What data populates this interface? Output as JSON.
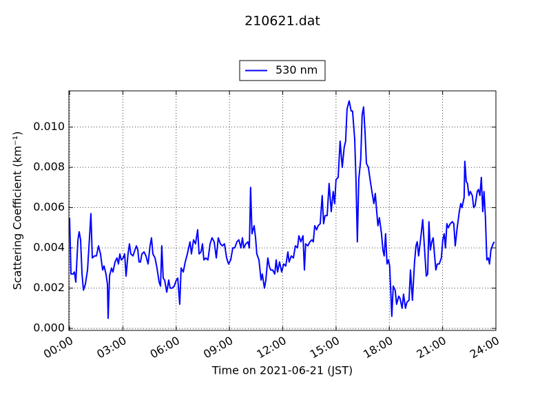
{
  "chart_data": {
    "type": "line",
    "title": "210621.dat",
    "x_label": "Time on 2021-06-21 (JST)",
    "y_label": "Scattering Coefficient (km⁻¹)",
    "xlim": [
      -0.04,
      24
    ],
    "xticks": [
      {
        "value": 0,
        "label": "00:00"
      },
      {
        "value": 3,
        "label": "03:00"
      },
      {
        "value": 6,
        "label": "06:00"
      },
      {
        "value": 9,
        "label": "09:00"
      },
      {
        "value": 12,
        "label": "12:00"
      },
      {
        "value": 15,
        "label": "15:00"
      },
      {
        "value": 18,
        "label": "18:00"
      },
      {
        "value": 21,
        "label": "21:00"
      },
      {
        "value": 24,
        "label": "24:00"
      }
    ],
    "ylim": [
      -0.0001,
      0.0118
    ],
    "yticks": [
      {
        "value": 0,
        "label": "0.000"
      },
      0.002,
      0.004,
      0.006,
      0.008,
      {
        "value": 0.01,
        "label": "0.010"
      }
    ],
    "grid": true,
    "legend": "upper center",
    "x": [
      0,
      0.08,
      0.19,
      0.27,
      0.35,
      0.47,
      0.54,
      0.62,
      0.7,
      0.78,
      0.89,
      1.01,
      1.12,
      1.2,
      1.28,
      1.4,
      1.51,
      1.63,
      1.74,
      1.86,
      1.94,
      2.05,
      2.13,
      2.17,
      2.25,
      2.36,
      2.44,
      2.56,
      2.67,
      2.75,
      2.83,
      2.91,
      3.02,
      3.1,
      3.18,
      3.29,
      3.37,
      3.45,
      3.57,
      3.68,
      3.76,
      3.84,
      3.91,
      3.99,
      4.07,
      4.19,
      4.3,
      4.42,
      4.53,
      4.61,
      4.69,
      4.81,
      4.92,
      5.04,
      5.12,
      5.19,
      5.27,
      5.35,
      5.47,
      5.58,
      5.66,
      5.77,
      5.89,
      6.01,
      6.09,
      6.2,
      6.28,
      6.4,
      6.51,
      6.63,
      6.78,
      6.86,
      6.98,
      7.09,
      7.21,
      7.29,
      7.4,
      7.48,
      7.56,
      7.67,
      7.79,
      7.91,
      8.02,
      8.14,
      8.26,
      8.37,
      8.49,
      8.6,
      8.72,
      8.84,
      8.95,
      9.07,
      9.19,
      9.3,
      9.42,
      9.53,
      9.65,
      9.73,
      9.81,
      9.92,
      10.04,
      10.12,
      10.19,
      10.27,
      10.39,
      10.47,
      10.54,
      10.66,
      10.78,
      10.85,
      10.97,
      11.05,
      11.16,
      11.24,
      11.32,
      11.43,
      11.55,
      11.63,
      11.71,
      11.82,
      11.94,
      12.05,
      12.17,
      12.29,
      12.36,
      12.48,
      12.6,
      12.71,
      12.83,
      12.91,
      13.02,
      13.14,
      13.22,
      13.29,
      13.41,
      13.53,
      13.64,
      13.72,
      13.8,
      13.91,
      13.99,
      14.11,
      14.22,
      14.3,
      14.38,
      14.5,
      14.61,
      14.73,
      14.84,
      14.92,
      15.0,
      15.12,
      15.23,
      15.35,
      15.46,
      15.54,
      15.62,
      15.74,
      15.85,
      15.93,
      16.05,
      16.12,
      16.2,
      16.28,
      16.39,
      16.47,
      16.55,
      16.63,
      16.71,
      16.82,
      16.9,
      17.02,
      17.13,
      17.21,
      17.29,
      17.36,
      17.44,
      17.56,
      17.64,
      17.71,
      17.79,
      17.87,
      17.95,
      18.02,
      18.14,
      18.22,
      18.33,
      18.41,
      18.53,
      18.6,
      18.72,
      18.8,
      18.91,
      18.99,
      19.11,
      19.19,
      19.3,
      19.42,
      19.5,
      19.57,
      19.65,
      19.77,
      19.88,
      20.0,
      20.08,
      20.16,
      20.23,
      20.31,
      20.39,
      20.47,
      20.54,
      20.62,
      20.7,
      20.81,
      20.93,
      21.01,
      21.09,
      21.16,
      21.24,
      21.32,
      21.43,
      21.55,
      21.63,
      21.71,
      21.82,
      21.94,
      22.02,
      22.09,
      22.21,
      22.25,
      22.33,
      22.4,
      22.48,
      22.56,
      22.67,
      22.75,
      22.83,
      22.95,
      23.02,
      23.1,
      23.18,
      23.26,
      23.33,
      23.41,
      23.49,
      23.57,
      23.64,
      23.72,
      23.84,
      23.91
    ],
    "series": [
      {
        "name": "530 nm",
        "color": "#0000ff",
        "values": [
          0.0055,
          0.0027,
          0.0027,
          0.0028,
          0.0023,
          0.0044,
          0.0048,
          0.0044,
          0.0027,
          0.0019,
          0.0022,
          0.0029,
          0.0045,
          0.0057,
          0.0035,
          0.0036,
          0.0036,
          0.0041,
          0.0037,
          0.0029,
          0.0031,
          0.0027,
          0.0022,
          0.0005,
          0.0026,
          0.003,
          0.0028,
          0.0033,
          0.0035,
          0.0032,
          0.0037,
          0.0034,
          0.0035,
          0.0037,
          0.0026,
          0.0037,
          0.0042,
          0.0037,
          0.0036,
          0.0039,
          0.0041,
          0.0039,
          0.0033,
          0.0033,
          0.0037,
          0.0038,
          0.0036,
          0.0032,
          0.0041,
          0.0045,
          0.0037,
          0.0035,
          0.003,
          0.0023,
          0.0021,
          0.0041,
          0.0025,
          0.0024,
          0.0018,
          0.0024,
          0.002,
          0.002,
          0.0021,
          0.0024,
          0.0025,
          0.0012,
          0.003,
          0.0028,
          0.0033,
          0.0037,
          0.0043,
          0.0037,
          0.0044,
          0.0042,
          0.0049,
          0.0037,
          0.0038,
          0.0042,
          0.0034,
          0.0035,
          0.0034,
          0.0042,
          0.0045,
          0.0043,
          0.0035,
          0.0045,
          0.0042,
          0.0041,
          0.0042,
          0.0035,
          0.0032,
          0.0034,
          0.004,
          0.004,
          0.0043,
          0.0044,
          0.004,
          0.0045,
          0.004,
          0.0042,
          0.0043,
          0.004,
          0.007,
          0.0047,
          0.0051,
          0.0045,
          0.0037,
          0.0034,
          0.0024,
          0.0027,
          0.002,
          0.0024,
          0.0035,
          0.0031,
          0.0029,
          0.0029,
          0.0027,
          0.0034,
          0.0028,
          0.0033,
          0.0028,
          0.0032,
          0.0031,
          0.0038,
          0.0033,
          0.0036,
          0.0035,
          0.0041,
          0.004,
          0.0046,
          0.0043,
          0.0046,
          0.0029,
          0.0042,
          0.0041,
          0.0043,
          0.0044,
          0.0043,
          0.0051,
          0.0049,
          0.0051,
          0.0052,
          0.0066,
          0.0052,
          0.0056,
          0.0056,
          0.0072,
          0.0058,
          0.0068,
          0.0062,
          0.0074,
          0.0075,
          0.0093,
          0.008,
          0.009,
          0.0093,
          0.0109,
          0.0113,
          0.0108,
          0.0108,
          0.0094,
          0.0075,
          0.0043,
          0.0074,
          0.0084,
          0.0106,
          0.011,
          0.0098,
          0.0082,
          0.008,
          0.0075,
          0.0068,
          0.0062,
          0.0067,
          0.0058,
          0.0051,
          0.0055,
          0.0047,
          0.0039,
          0.0036,
          0.0047,
          0.0032,
          0.0034,
          0.0031,
          0.0006,
          0.0021,
          0.0019,
          0.0012,
          0.0016,
          0.0015,
          0.001,
          0.0017,
          0.001,
          0.0013,
          0.0014,
          0.0029,
          0.0014,
          0.0033,
          0.0041,
          0.0043,
          0.0036,
          0.0045,
          0.0054,
          0.0037,
          0.0026,
          0.0027,
          0.0053,
          0.0039,
          0.0043,
          0.0045,
          0.0037,
          0.0029,
          0.0032,
          0.0032,
          0.0035,
          0.0044,
          0.0047,
          0.004,
          0.0052,
          0.005,
          0.0052,
          0.0053,
          0.0052,
          0.0041,
          0.005,
          0.0058,
          0.0062,
          0.006,
          0.0065,
          0.0083,
          0.0073,
          0.0072,
          0.0066,
          0.0068,
          0.0066,
          0.006,
          0.0061,
          0.0068,
          0.0069,
          0.0066,
          0.0075,
          0.0058,
          0.0068,
          0.0055,
          0.0034,
          0.0035,
          0.0032,
          0.0039,
          0.0042,
          0.0043
        ]
      }
    ]
  }
}
